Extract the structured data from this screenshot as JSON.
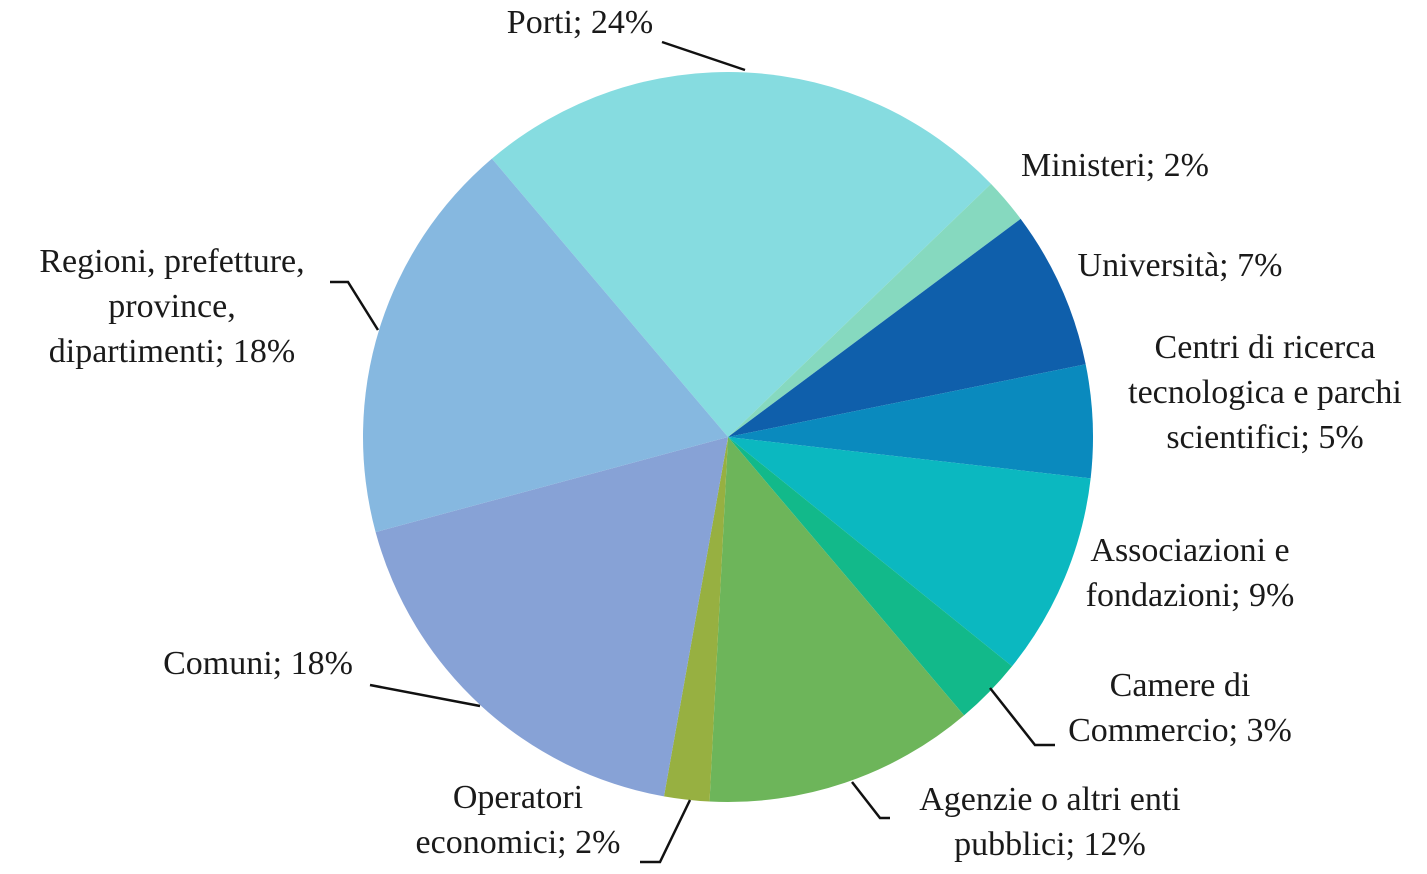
{
  "chart_data": {
    "type": "pie",
    "categories": [
      "Porti",
      "Ministeri",
      "Università",
      "Centri di ricerca tecnologica e parchi scientifici",
      "Associazioni e fondazioni",
      "Camere di Commercio",
      "Agenzie o altri enti pubblici",
      "Operatori economici",
      "Comuni",
      "Regioni, prefetture, province, dipartimenti"
    ],
    "values": [
      24,
      2,
      7,
      5,
      9,
      3,
      12,
      2,
      18,
      18
    ],
    "value_labels": [
      [
        "Porti; 24%"
      ],
      [
        "Ministeri; 2%"
      ],
      [
        "Università; 7%"
      ],
      [
        "Centri di ricerca",
        "tecnologica e parchi",
        "scientifici; 5%"
      ],
      [
        "Associazioni e",
        "fondazioni; 9%"
      ],
      [
        "Camere di",
        "Commercio; 3%"
      ],
      [
        "Agenzie o altri enti",
        "pubblici; 12%"
      ],
      [
        "Operatori",
        "economici; 2%"
      ],
      [
        "Comuni; 18%"
      ],
      [
        "Regioni, prefetture,",
        "province,",
        "dipartimenti; 18%"
      ]
    ],
    "colors": [
      "#86dce0",
      "#86d9bf",
      "#0f5fab",
      "#0a8abe",
      "#0bb8c0",
      "#12b98a",
      "#6db55a",
      "#97b041",
      "#87a2d6",
      "#86b8e0"
    ]
  }
}
